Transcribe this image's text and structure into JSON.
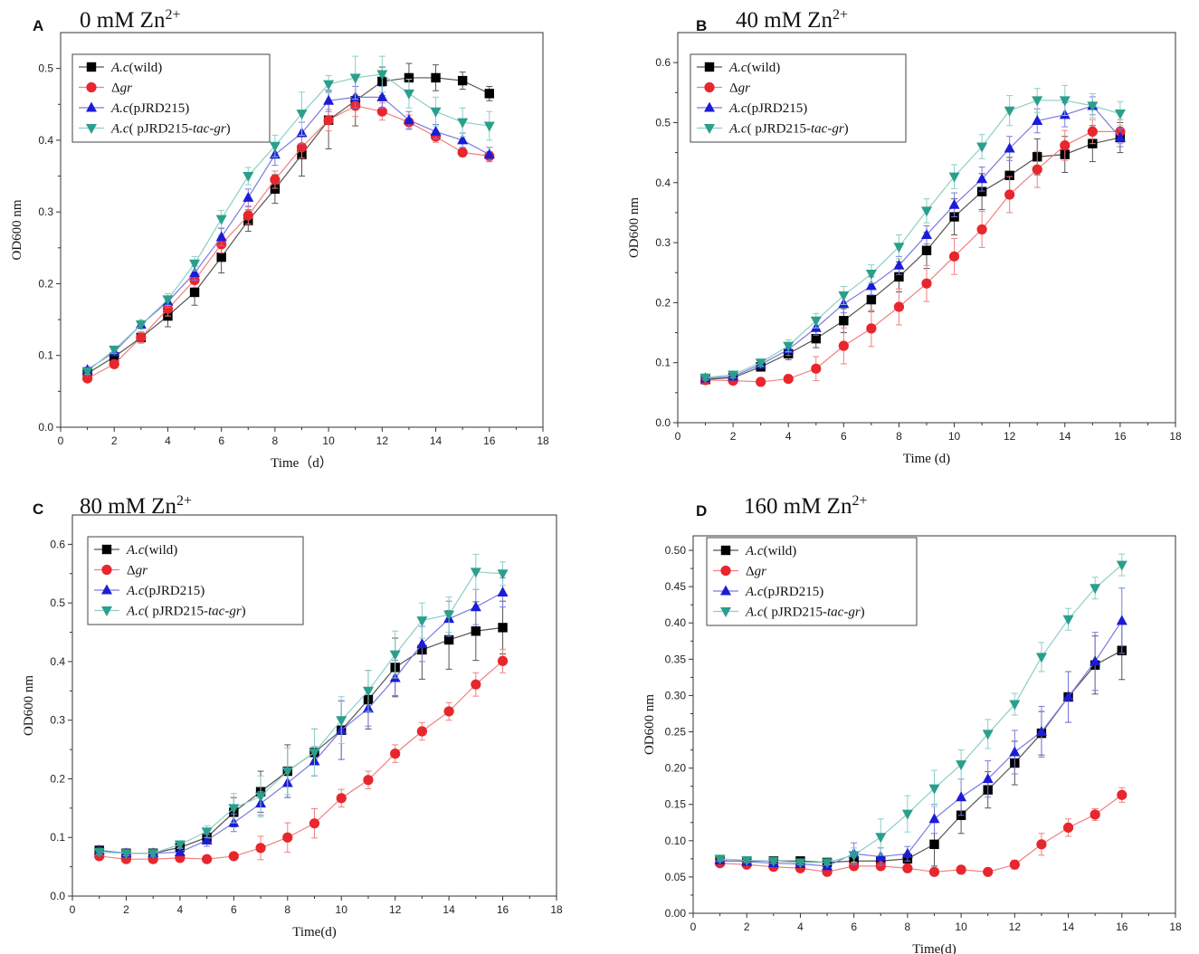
{
  "chart_data": [
    {
      "type": "line",
      "panel": "A",
      "title": "0 mM Zn",
      "title_sup": "2+",
      "xlabel": "Time（d）",
      "ylabel": "OD600 nm",
      "xlim": [
        0,
        18
      ],
      "ylim": [
        0,
        0.55
      ],
      "xticks": [
        "0",
        "2",
        "4",
        "6",
        "8",
        "10",
        "12",
        "14",
        "16",
        "18"
      ],
      "yticks": [
        "0.0",
        "0.1",
        "0.2",
        "0.3",
        "0.4",
        "0.5"
      ],
      "legend_position": "top-left",
      "x": [
        1,
        2,
        3,
        4,
        5,
        6,
        7,
        8,
        9,
        10,
        11,
        12,
        13,
        14,
        15,
        16
      ],
      "series": [
        {
          "name": "A.c(wild)",
          "name_parts": [
            [
              "A.c",
              "italic"
            ],
            [
              "(wild)",
              "normal"
            ]
          ],
          "color": "#000000",
          "line": "#555555",
          "marker": "square",
          "values": [
            0.075,
            0.098,
            0.125,
            0.155,
            0.188,
            0.237,
            0.288,
            0.332,
            0.38,
            0.428,
            0.455,
            0.482,
            0.487,
            0.487,
            0.483,
            0.465
          ],
          "errors": [
            0.004,
            0.005,
            0.006,
            0.015,
            0.018,
            0.022,
            0.015,
            0.02,
            0.03,
            0.04,
            0.035,
            0.02,
            0.02,
            0.018,
            0.012,
            0.01
          ]
        },
        {
          "name": "Δgr",
          "name_parts": [
            [
              "Δ",
              "normal"
            ],
            [
              "gr",
              "italic"
            ]
          ],
          "color": "#e8262d",
          "line": "#f08080",
          "marker": "circle",
          "values": [
            0.068,
            0.088,
            0.125,
            0.165,
            0.205,
            0.255,
            0.295,
            0.345,
            0.39,
            0.428,
            0.448,
            0.44,
            0.425,
            0.405,
            0.383,
            0.378
          ],
          "errors": [
            0.004,
            0.005,
            0.008,
            0.01,
            0.01,
            0.012,
            0.012,
            0.012,
            0.015,
            0.015,
            0.015,
            0.012,
            0.01,
            0.008,
            0.006,
            0.006
          ]
        },
        {
          "name": "A.c(pJRD215)",
          "name_parts": [
            [
              "A.c",
              "italic"
            ],
            [
              "(pJRD215)",
              "normal"
            ]
          ],
          "color": "#1c1cd6",
          "line": "#7a7ae0",
          "marker": "triangle-up",
          "values": [
            0.08,
            0.105,
            0.143,
            0.175,
            0.215,
            0.265,
            0.32,
            0.38,
            0.41,
            0.455,
            0.46,
            0.46,
            0.428,
            0.412,
            0.4,
            0.38
          ],
          "errors": [
            0.004,
            0.005,
            0.006,
            0.008,
            0.01,
            0.012,
            0.012,
            0.015,
            0.015,
            0.015,
            0.015,
            0.015,
            0.012,
            0.01,
            0.01,
            0.01
          ]
        },
        {
          "name": "A.c( pJRD215-tac-gr)",
          "name_parts": [
            [
              "A.c",
              "italic"
            ],
            [
              "( pJRD215-",
              "normal"
            ],
            [
              "tac-gr",
              "italic"
            ],
            [
              ")",
              "normal"
            ]
          ],
          "color": "#2a9f8d",
          "line": "#8ccfc4",
          "marker": "triangle-down",
          "values": [
            0.078,
            0.108,
            0.143,
            0.178,
            0.228,
            0.29,
            0.35,
            0.392,
            0.437,
            0.478,
            0.487,
            0.492,
            0.465,
            0.44,
            0.425,
            0.42
          ],
          "errors": [
            0.004,
            0.005,
            0.006,
            0.008,
            0.01,
            0.012,
            0.012,
            0.015,
            0.03,
            0.012,
            0.03,
            0.025,
            0.02,
            0.02,
            0.02,
            0.02
          ]
        }
      ]
    },
    {
      "type": "line",
      "panel": "B",
      "title": "40 mM Zn",
      "title_sup": "2+",
      "xlabel": "Time (d)",
      "ylabel": "OD600 nm",
      "xlim": [
        0,
        18
      ],
      "ylim": [
        0,
        0.65
      ],
      "xticks": [
        "0",
        "2",
        "4",
        "6",
        "8",
        "10",
        "12",
        "14",
        "16",
        "18"
      ],
      "yticks": [
        "0.0",
        "0.1",
        "0.2",
        "0.3",
        "0.4",
        "0.5",
        "0.6"
      ],
      "legend_position": "top-left",
      "x": [
        1,
        2,
        3,
        4,
        5,
        6,
        7,
        8,
        9,
        10,
        11,
        12,
        13,
        14,
        15,
        16
      ],
      "series": [
        {
          "name": "A.c(wild)",
          "name_parts": [
            [
              "A.c",
              "italic"
            ],
            [
              "(wild)",
              "normal"
            ]
          ],
          "color": "#000000",
          "line": "#555555",
          "marker": "square",
          "values": [
            0.072,
            0.075,
            0.093,
            0.115,
            0.14,
            0.17,
            0.205,
            0.243,
            0.287,
            0.343,
            0.385,
            0.412,
            0.443,
            0.447,
            0.465,
            0.475
          ],
          "errors": [
            0.004,
            0.005,
            0.006,
            0.01,
            0.015,
            0.02,
            0.02,
            0.025,
            0.03,
            0.03,
            0.03,
            0.03,
            0.03,
            0.03,
            0.03,
            0.025
          ]
        },
        {
          "name": "Δgr",
          "name_parts": [
            [
              "Δ",
              "normal"
            ],
            [
              "gr",
              "italic"
            ]
          ],
          "color": "#e8262d",
          "line": "#f08080",
          "marker": "circle",
          "values": [
            0.071,
            0.07,
            0.068,
            0.073,
            0.09,
            0.128,
            0.157,
            0.193,
            0.232,
            0.277,
            0.322,
            0.38,
            0.422,
            0.462,
            0.485,
            0.485
          ],
          "errors": [
            0.004,
            0.005,
            0.004,
            0.006,
            0.02,
            0.03,
            0.03,
            0.03,
            0.03,
            0.03,
            0.03,
            0.03,
            0.03,
            0.025,
            0.02,
            0.02
          ]
        },
        {
          "name": "A.c(pJRD215)",
          "name_parts": [
            [
              "A.c",
              "italic"
            ],
            [
              "(pJRD215)",
              "normal"
            ]
          ],
          "color": "#1c1cd6",
          "line": "#7a7ae0",
          "marker": "triangle-up",
          "values": [
            0.074,
            0.077,
            0.097,
            0.122,
            0.158,
            0.198,
            0.228,
            0.262,
            0.313,
            0.363,
            0.406,
            0.457,
            0.503,
            0.513,
            0.528,
            0.475
          ],
          "errors": [
            0.004,
            0.005,
            0.006,
            0.01,
            0.012,
            0.015,
            0.015,
            0.015,
            0.015,
            0.02,
            0.02,
            0.02,
            0.02,
            0.02,
            0.015,
            0.015
          ]
        },
        {
          "name": "A.c( pJRD215-tac-gr)",
          "name_parts": [
            [
              "A.c",
              "italic"
            ],
            [
              "( pJRD215-",
              "normal"
            ],
            [
              "tac-gr",
              "italic"
            ],
            [
              ")",
              "normal"
            ]
          ],
          "color": "#2a9f8d",
          "line": "#8ccfc4",
          "marker": "triangle-down",
          "values": [
            0.075,
            0.08,
            0.1,
            0.128,
            0.17,
            0.212,
            0.248,
            0.293,
            0.353,
            0.41,
            0.46,
            0.52,
            0.537,
            0.537,
            0.528,
            0.515
          ],
          "errors": [
            0.004,
            0.005,
            0.006,
            0.01,
            0.012,
            0.015,
            0.015,
            0.02,
            0.02,
            0.02,
            0.02,
            0.025,
            0.02,
            0.025,
            0.02,
            0.02
          ]
        }
      ]
    },
    {
      "type": "line",
      "panel": "C",
      "title": "80 mM Zn",
      "title_sup": "2+",
      "xlabel": "Time(d)",
      "ylabel": "OD600 nm",
      "xlim": [
        0,
        18
      ],
      "ylim": [
        0,
        0.65
      ],
      "xticks": [
        "0",
        "2",
        "4",
        "6",
        "8",
        "10",
        "12",
        "14",
        "16",
        "18"
      ],
      "yticks": [
        "0.0",
        "0.1",
        "0.2",
        "0.3",
        "0.4",
        "0.5",
        "0.6"
      ],
      "legend_position": "top-left",
      "x": [
        1,
        2,
        3,
        4,
        5,
        6,
        7,
        8,
        9,
        10,
        11,
        12,
        13,
        14,
        15,
        16
      ],
      "series": [
        {
          "name": "A.c(wild)",
          "name_parts": [
            [
              "A.c",
              "italic"
            ],
            [
              "(wild)",
              "normal"
            ]
          ],
          "color": "#000000",
          "line": "#555555",
          "marker": "square",
          "values": [
            0.078,
            0.073,
            0.073,
            0.083,
            0.1,
            0.143,
            0.178,
            0.213,
            0.245,
            0.283,
            0.335,
            0.39,
            0.42,
            0.437,
            0.452,
            0.458
          ],
          "errors": [
            0.004,
            0.004,
            0.005,
            0.006,
            0.01,
            0.025,
            0.035,
            0.045,
            0.04,
            0.05,
            0.05,
            0.05,
            0.05,
            0.05,
            0.05,
            0.045
          ]
        },
        {
          "name": "Δgr",
          "name_parts": [
            [
              "Δ",
              "normal"
            ],
            [
              "gr",
              "italic"
            ]
          ],
          "color": "#e8262d",
          "line": "#f08080",
          "marker": "circle",
          "values": [
            0.068,
            0.063,
            0.063,
            0.065,
            0.063,
            0.068,
            0.082,
            0.1,
            0.124,
            0.167,
            0.198,
            0.243,
            0.281,
            0.315,
            0.361,
            0.401
          ],
          "errors": [
            0.004,
            0.004,
            0.005,
            0.005,
            0.004,
            0.005,
            0.02,
            0.025,
            0.025,
            0.015,
            0.015,
            0.015,
            0.015,
            0.015,
            0.02,
            0.02
          ]
        },
        {
          "name": "A.c(pJRD215)",
          "name_parts": [
            [
              "A.c",
              "italic"
            ],
            [
              "(pJRD215)",
              "normal"
            ]
          ],
          "color": "#1c1cd6",
          "line": "#7a7ae0",
          "marker": "triangle-up",
          "values": [
            0.078,
            0.073,
            0.073,
            0.075,
            0.095,
            0.125,
            0.158,
            0.193,
            0.23,
            0.283,
            0.32,
            0.372,
            0.43,
            0.473,
            0.493,
            0.518
          ],
          "errors": [
            0.004,
            0.004,
            0.005,
            0.006,
            0.01,
            0.015,
            0.02,
            0.025,
            0.025,
            0.05,
            0.03,
            0.03,
            0.03,
            0.03,
            0.03,
            0.025
          ]
        },
        {
          "name": "A.c( pJRD215-tac-gr)",
          "name_parts": [
            [
              "A.c",
              "italic"
            ],
            [
              "( pJRD215-",
              "normal"
            ],
            [
              "tac-gr",
              "italic"
            ],
            [
              ")",
              "normal"
            ]
          ],
          "color": "#2a9f8d",
          "line": "#8ccfc4",
          "marker": "triangle-down",
          "values": [
            0.075,
            0.073,
            0.073,
            0.088,
            0.11,
            0.15,
            0.17,
            0.213,
            0.245,
            0.3,
            0.35,
            0.412,
            0.47,
            0.48,
            0.553,
            0.55
          ],
          "errors": [
            0.004,
            0.004,
            0.005,
            0.006,
            0.01,
            0.025,
            0.035,
            0.04,
            0.04,
            0.04,
            0.035,
            0.04,
            0.03,
            0.03,
            0.03,
            0.02
          ]
        }
      ]
    },
    {
      "type": "line",
      "panel": "D",
      "title": "160 mM Zn",
      "title_sup": "2+",
      "xlabel": "Time(d)",
      "ylabel": "OD600 nm",
      "xlim": [
        0,
        18
      ],
      "ylim": [
        0,
        0.52
      ],
      "xticks": [
        "0",
        "2",
        "4",
        "6",
        "8",
        "10",
        "12",
        "14",
        "16",
        "18"
      ],
      "yticks": [
        "0.00",
        "0.05",
        "0.10",
        "0.15",
        "0.20",
        "0.25",
        "0.30",
        "0.35",
        "0.40",
        "0.45",
        "0.50"
      ],
      "legend_position": "top-left",
      "x": [
        1,
        2,
        3,
        4,
        5,
        6,
        7,
        8,
        9,
        10,
        11,
        12,
        13,
        14,
        15,
        16
      ],
      "series": [
        {
          "name": "A.c(wild)",
          "name_parts": [
            [
              "A.c",
              "italic"
            ],
            [
              "(wild)",
              "normal"
            ]
          ],
          "color": "#000000",
          "line": "#555555",
          "marker": "square",
          "values": [
            0.072,
            0.072,
            0.072,
            0.072,
            0.07,
            0.072,
            0.072,
            0.075,
            0.095,
            0.135,
            0.17,
            0.207,
            0.248,
            0.298,
            0.342,
            0.362
          ],
          "errors": [
            0.003,
            0.003,
            0.003,
            0.003,
            0.003,
            0.004,
            0.005,
            0.008,
            0.03,
            0.025,
            0.025,
            0.03,
            0.03,
            0.035,
            0.04,
            0.04
          ]
        },
        {
          "name": "Δgr",
          "name_parts": [
            [
              "Δ",
              "normal"
            ],
            [
              "gr",
              "italic"
            ]
          ],
          "color": "#e8262d",
          "line": "#f08080",
          "marker": "circle",
          "values": [
            0.069,
            0.067,
            0.064,
            0.062,
            0.057,
            0.065,
            0.065,
            0.062,
            0.057,
            0.06,
            0.057,
            0.067,
            0.095,
            0.118,
            0.136,
            0.163
          ],
          "errors": [
            0.003,
            0.003,
            0.003,
            0.003,
            0.003,
            0.004,
            0.004,
            0.004,
            0.003,
            0.003,
            0.003,
            0.006,
            0.015,
            0.012,
            0.008,
            0.01
          ]
        },
        {
          "name": "A.c(pJRD215)",
          "name_parts": [
            [
              "A.c",
              "italic"
            ],
            [
              "(pJRD215)",
              "normal"
            ]
          ],
          "color": "#1c1cd6",
          "line": "#7a7ae0",
          "marker": "triangle-up",
          "values": [
            0.073,
            0.071,
            0.069,
            0.068,
            0.065,
            0.082,
            0.078,
            0.082,
            0.13,
            0.16,
            0.185,
            0.222,
            0.25,
            0.298,
            0.347,
            0.403
          ],
          "errors": [
            0.003,
            0.003,
            0.003,
            0.003,
            0.003,
            0.015,
            0.012,
            0.01,
            0.02,
            0.025,
            0.025,
            0.03,
            0.035,
            0.035,
            0.04,
            0.045
          ]
        },
        {
          "name": "A.c( pJRD215-tac-gr)",
          "name_parts": [
            [
              "A.c",
              "italic"
            ],
            [
              "( pJRD215-",
              "normal"
            ],
            [
              "tac-gr",
              "italic"
            ],
            [
              ")",
              "normal"
            ]
          ],
          "color": "#2a9f8d",
          "line": "#8ccfc4",
          "marker": "triangle-down",
          "values": [
            0.075,
            0.073,
            0.072,
            0.07,
            0.07,
            0.08,
            0.105,
            0.137,
            0.172,
            0.205,
            0.247,
            0.288,
            0.353,
            0.405,
            0.448,
            0.48
          ],
          "errors": [
            0.003,
            0.003,
            0.003,
            0.003,
            0.003,
            0.01,
            0.025,
            0.025,
            0.025,
            0.02,
            0.02,
            0.015,
            0.02,
            0.015,
            0.015,
            0.015
          ]
        }
      ]
    }
  ]
}
